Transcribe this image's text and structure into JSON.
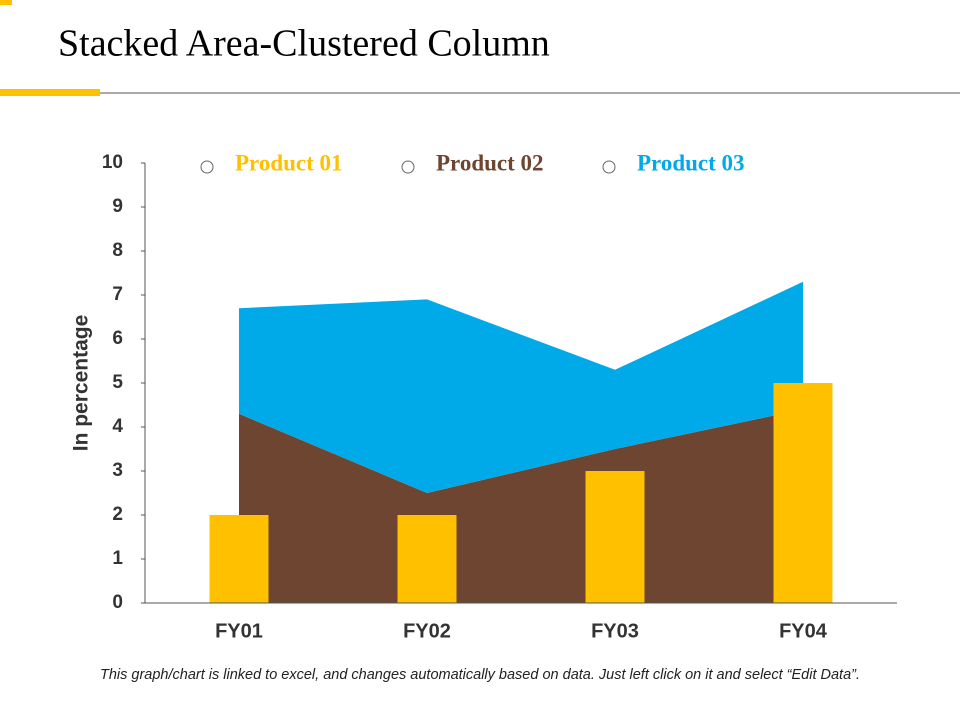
{
  "chart_data": {
    "type": "bar",
    "title": "Stacked Area-Clustered Column",
    "y_label": "In percentage",
    "categories": [
      "FY01",
      "FY02",
      "FY03",
      "FY04"
    ],
    "series": [
      {
        "name": "Product 01",
        "type": "bar",
        "color": "#FFC000",
        "values": [
          2,
          2,
          3,
          5
        ]
      },
      {
        "name": "Product 02",
        "type": "area",
        "color": "#6E4530",
        "values": [
          4.3,
          2.5,
          3.5,
          4.4
        ]
      },
      {
        "name": "Product 03",
        "type": "area",
        "color": "#00A9E8",
        "values": [
          2.4,
          4.4,
          1.8,
          2.9
        ]
      }
    ],
    "ylim": [
      0,
      10
    ],
    "yticks": [
      0,
      1,
      2,
      3,
      4,
      5,
      6,
      7,
      8,
      9,
      10
    ],
    "legend": "top"
  },
  "footnote": "This graph/chart is linked to excel, and changes automatically based on data. Just left click on it and select “Edit Data”."
}
